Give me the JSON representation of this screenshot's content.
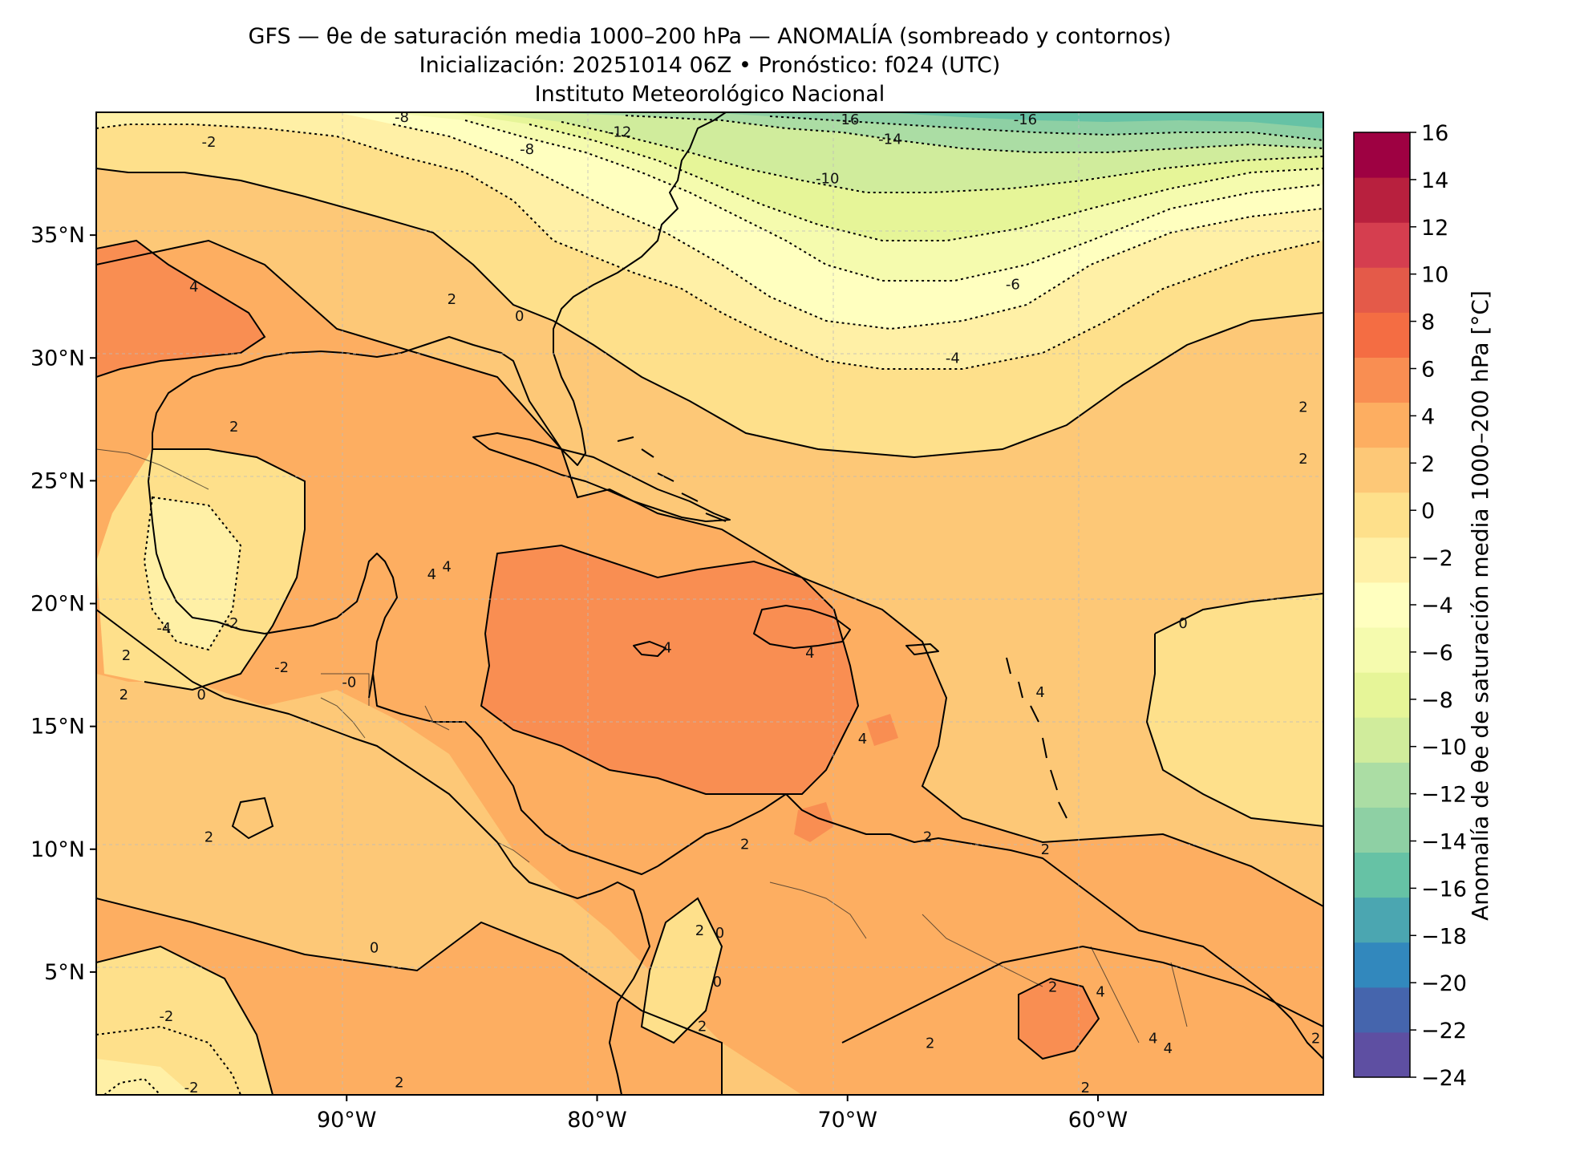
{
  "title_lines": [
    "GFS — θe de saturación media 1000–200 hPa — ANOMALÍA (sombreado y contornos)",
    "Inicialización: 20251014 06Z   •   Pronóstico: f024 (UTC)",
    "Instituto Meteorológico Nacional"
  ],
  "map": {
    "lon_range": [
      -100,
      -51
    ],
    "lat_range": [
      0,
      40
    ],
    "lon_ticks": [
      {
        "value": -90,
        "label": "90°W"
      },
      {
        "value": -80,
        "label": "80°W"
      },
      {
        "value": -70,
        "label": "70°W"
      },
      {
        "value": -60,
        "label": "60°W"
      }
    ],
    "lat_ticks": [
      {
        "value": 35,
        "label": "35°N"
      },
      {
        "value": 30,
        "label": "30°N"
      },
      {
        "value": 25,
        "label": "25°N"
      },
      {
        "value": 20,
        "label": "20°N"
      },
      {
        "value": 15,
        "label": "15°N"
      },
      {
        "value": 10,
        "label": "10°N"
      },
      {
        "value": 5,
        "label": "5°N"
      }
    ],
    "contour_labels": [
      {
        "text": "-8",
        "lon": -87.8,
        "lat": 39.8
      },
      {
        "text": "-12",
        "lon": -79.1,
        "lat": 39.2
      },
      {
        "text": "-16",
        "lon": -70.0,
        "lat": 39.7
      },
      {
        "text": "-16",
        "lon": -62.9,
        "lat": 39.7
      },
      {
        "text": "-14",
        "lon": -68.3,
        "lat": 38.9
      },
      {
        "text": "-2",
        "lon": -95.5,
        "lat": 38.8
      },
      {
        "text": "-8",
        "lon": -82.8,
        "lat": 38.5
      },
      {
        "text": "-10",
        "lon": -70.8,
        "lat": 37.3
      },
      {
        "text": "-6",
        "lon": -63.4,
        "lat": 33.0
      },
      {
        "text": "-4",
        "lon": -65.8,
        "lat": 30.0
      },
      {
        "text": "4",
        "lon": -96.1,
        "lat": 32.9
      },
      {
        "text": "2",
        "lon": -85.8,
        "lat": 32.4
      },
      {
        "text": "0",
        "lon": -83.1,
        "lat": 31.7
      },
      {
        "text": "2",
        "lon": -94.5,
        "lat": 27.2
      },
      {
        "text": "2",
        "lon": -51.8,
        "lat": 28.0
      },
      {
        "text": "2",
        "lon": -51.8,
        "lat": 25.9
      },
      {
        "text": "0",
        "lon": -56.6,
        "lat": 19.2
      },
      {
        "text": "4",
        "lon": -86.6,
        "lat": 21.2
      },
      {
        "text": "4",
        "lon": -86.0,
        "lat": 21.5
      },
      {
        "text": "-2",
        "lon": -94.6,
        "lat": 19.2
      },
      {
        "text": "-4",
        "lon": -97.3,
        "lat": 19.0
      },
      {
        "text": "2",
        "lon": -98.8,
        "lat": 17.9
      },
      {
        "text": "-2",
        "lon": -92.6,
        "lat": 17.4
      },
      {
        "text": "-0",
        "lon": -89.9,
        "lat": 16.8
      },
      {
        "text": "2",
        "lon": -98.9,
        "lat": 16.3
      },
      {
        "text": "0",
        "lon": -95.8,
        "lat": 16.3
      },
      {
        "text": "4",
        "lon": -77.2,
        "lat": 18.2
      },
      {
        "text": "4",
        "lon": -71.5,
        "lat": 18.0
      },
      {
        "text": "4",
        "lon": -62.3,
        "lat": 16.4
      },
      {
        "text": "4",
        "lon": -69.4,
        "lat": 14.5
      },
      {
        "text": "2",
        "lon": -95.5,
        "lat": 10.5
      },
      {
        "text": "2",
        "lon": -74.1,
        "lat": 10.2
      },
      {
        "text": "2",
        "lon": -66.8,
        "lat": 10.5
      },
      {
        "text": "2",
        "lon": -62.1,
        "lat": 10.0
      },
      {
        "text": "0",
        "lon": -88.9,
        "lat": 6.0
      },
      {
        "text": "2",
        "lon": -75.9,
        "lat": 6.7
      },
      {
        "text": "0",
        "lon": -75.1,
        "lat": 6.6
      },
      {
        "text": "0",
        "lon": -75.2,
        "lat": 4.6
      },
      {
        "text": "2",
        "lon": -75.8,
        "lat": 2.8
      },
      {
        "text": "4",
        "lon": -59.9,
        "lat": 4.2
      },
      {
        "text": "2",
        "lon": -61.8,
        "lat": 4.4
      },
      {
        "text": "4",
        "lon": -57.8,
        "lat": 2.3
      },
      {
        "text": "4",
        "lon": -57.2,
        "lat": 1.9
      },
      {
        "text": "2",
        "lon": -66.7,
        "lat": 2.1
      },
      {
        "text": "-2",
        "lon": -97.2,
        "lat": 3.2
      },
      {
        "text": "-2",
        "lon": -96.2,
        "lat": 0.3
      },
      {
        "text": "2",
        "lon": -87.9,
        "lat": 0.5
      },
      {
        "text": "2",
        "lon": -60.5,
        "lat": 0.3
      },
      {
        "text": "2",
        "lon": -51.3,
        "lat": 2.3
      }
    ]
  },
  "colorbar": {
    "label": "Anomalía de θe de saturación media 1000–200 hPa [°C]",
    "levels": [
      -24,
      -22,
      -20,
      -18,
      -16,
      -14,
      -12,
      -10,
      -8,
      -6,
      -4,
      -2,
      0,
      2,
      4,
      6,
      8,
      10,
      12,
      14,
      16
    ],
    "tick_labels": [
      "16",
      "14",
      "12",
      "10",
      "8",
      "6",
      "4",
      "2",
      "0",
      "−2",
      "−4",
      "−6",
      "−8",
      "−10",
      "−12",
      "−14",
      "−16",
      "−18",
      "−20",
      "−22",
      "−24"
    ],
    "colors": [
      "#5e4fa2",
      "#4565ad",
      "#3288bd",
      "#4ba6b1",
      "#66c2a5",
      "#8ed0a4",
      "#abdda4",
      "#d0ec9c",
      "#e6f598",
      "#f5fbae",
      "#ffffbf",
      "#fff0a6",
      "#fee08b",
      "#fdc877",
      "#fdae61",
      "#f98e52",
      "#f46d43",
      "#e45a49",
      "#d53e4f",
      "#b8203e",
      "#9e0142"
    ]
  }
}
